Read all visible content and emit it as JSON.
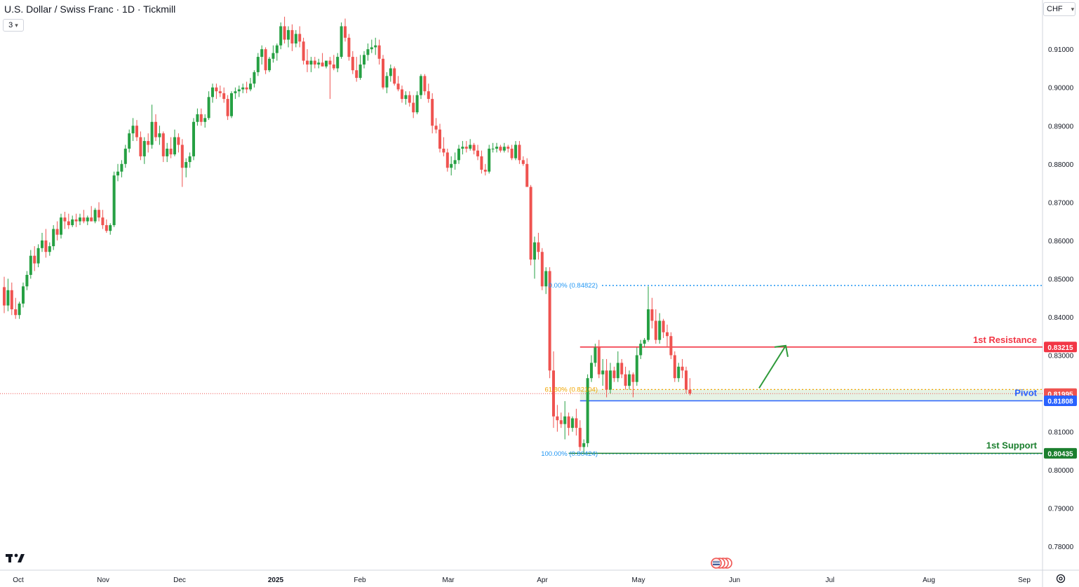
{
  "header": {
    "title": "U.S. Dollar / Swiss Franc · 1D · Tickmill",
    "indicator_count": "3",
    "currency": "CHF"
  },
  "colors": {
    "up": "#26a043",
    "down": "#ef5350",
    "resistance": "#f23645",
    "pivot": "#2962ff",
    "support": "#1b7f2e",
    "fib_zero": "#2196f3",
    "fib_618": "#f0a500",
    "arrow": "#2e9a3a",
    "pivot_band": "#e6f2e4"
  },
  "icons": [
    "tradingview-logo-icon",
    "settings-icon",
    "economic-events-icon",
    "chevron-down-icon"
  ],
  "chart_data": {
    "type": "candlestick",
    "title": "U.S. Dollar / Swiss Franc · 1D · Tickmill",
    "y_unit": "CHF",
    "ylim": [
      0.7738,
      0.9225
    ],
    "y_ticks": [
      0.91,
      0.9,
      0.89,
      0.88,
      0.87,
      0.86,
      0.85,
      0.84,
      0.83,
      0.82,
      0.81,
      0.8,
      0.79,
      0.78
    ],
    "y_tick_labels": [
      "0.91000",
      "0.90000",
      "0.89000",
      "0.88000",
      "0.87000",
      "0.86000",
      "0.85000",
      "0.84000",
      "0.83000",
      "0.82000",
      "0.81000",
      "0.80000",
      "0.79000",
      "0.78000"
    ],
    "x_labels": [
      "Oct",
      "Nov",
      "Dec",
      "2025",
      "Feb",
      "Mar",
      "Apr",
      "May",
      "Jun",
      "Jul",
      "Aug",
      "Sep"
    ],
    "grid": false,
    "ohlc": [
      [
        0.8478,
        0.8505,
        0.841,
        0.843
      ],
      [
        0.843,
        0.85,
        0.8415,
        0.847
      ],
      [
        0.847,
        0.849,
        0.8405,
        0.842
      ],
      [
        0.842,
        0.845,
        0.8395,
        0.8405
      ],
      [
        0.8405,
        0.844,
        0.8395,
        0.8435
      ],
      [
        0.8435,
        0.849,
        0.8425,
        0.848
      ],
      [
        0.848,
        0.852,
        0.847,
        0.851
      ],
      [
        0.851,
        0.8575,
        0.85,
        0.856
      ],
      [
        0.856,
        0.8585,
        0.852,
        0.854
      ],
      [
        0.854,
        0.859,
        0.853,
        0.858
      ],
      [
        0.858,
        0.862,
        0.857,
        0.86
      ],
      [
        0.86,
        0.863,
        0.8555,
        0.857
      ],
      [
        0.857,
        0.8595,
        0.856,
        0.8585
      ],
      [
        0.8585,
        0.864,
        0.8575,
        0.863
      ],
      [
        0.863,
        0.865,
        0.86,
        0.8615
      ],
      [
        0.8615,
        0.867,
        0.8605,
        0.866
      ],
      [
        0.866,
        0.8675,
        0.863,
        0.865
      ],
      [
        0.865,
        0.867,
        0.863,
        0.864
      ],
      [
        0.864,
        0.8665,
        0.8635,
        0.8655
      ],
      [
        0.8655,
        0.867,
        0.8635,
        0.865
      ],
      [
        0.865,
        0.867,
        0.864,
        0.866
      ],
      [
        0.866,
        0.868,
        0.8645,
        0.865
      ],
      [
        0.865,
        0.8665,
        0.864,
        0.866
      ],
      [
        0.866,
        0.869,
        0.865,
        0.865
      ],
      [
        0.865,
        0.8685,
        0.8645,
        0.868
      ],
      [
        0.868,
        0.87,
        0.865,
        0.866
      ],
      [
        0.866,
        0.868,
        0.863,
        0.864
      ],
      [
        0.864,
        0.8655,
        0.862,
        0.8625
      ],
      [
        0.8625,
        0.8645,
        0.8615,
        0.864
      ],
      [
        0.864,
        0.878,
        0.8635,
        0.877
      ],
      [
        0.877,
        0.88,
        0.8755,
        0.878
      ],
      [
        0.878,
        0.881,
        0.8765,
        0.88
      ],
      [
        0.88,
        0.885,
        0.879,
        0.884
      ],
      [
        0.884,
        0.889,
        0.883,
        0.888
      ],
      [
        0.888,
        0.892,
        0.886,
        0.89
      ],
      [
        0.89,
        0.8915,
        0.886,
        0.887
      ],
      [
        0.887,
        0.8885,
        0.881,
        0.882
      ],
      [
        0.882,
        0.887,
        0.88,
        0.886
      ],
      [
        0.886,
        0.888,
        0.883,
        0.885
      ],
      [
        0.885,
        0.8955,
        0.884,
        0.891
      ],
      [
        0.891,
        0.893,
        0.886,
        0.887
      ],
      [
        0.887,
        0.89,
        0.885,
        0.888
      ],
      [
        0.888,
        0.8885,
        0.8805,
        0.882
      ],
      [
        0.882,
        0.8855,
        0.8805,
        0.884
      ],
      [
        0.884,
        0.887,
        0.8815,
        0.8825
      ],
      [
        0.8825,
        0.889,
        0.882,
        0.887
      ],
      [
        0.887,
        0.888,
        0.883,
        0.885
      ],
      [
        0.885,
        0.8865,
        0.874,
        0.879
      ],
      [
        0.879,
        0.8815,
        0.8765,
        0.8805
      ],
      [
        0.8805,
        0.883,
        0.879,
        0.882
      ],
      [
        0.882,
        0.892,
        0.881,
        0.891
      ],
      [
        0.891,
        0.8945,
        0.89,
        0.893
      ],
      [
        0.893,
        0.8945,
        0.89,
        0.891
      ],
      [
        0.891,
        0.893,
        0.8895,
        0.892
      ],
      [
        0.892,
        0.899,
        0.8915,
        0.8975
      ],
      [
        0.8975,
        0.901,
        0.896,
        0.9
      ],
      [
        0.9,
        0.901,
        0.897,
        0.899
      ],
      [
        0.899,
        0.9005,
        0.8975,
        0.8985
      ],
      [
        0.8985,
        0.9,
        0.896,
        0.897
      ],
      [
        0.897,
        0.898,
        0.8915,
        0.8925
      ],
      [
        0.8925,
        0.899,
        0.892,
        0.8985
      ],
      [
        0.8985,
        0.9,
        0.897,
        0.899
      ],
      [
        0.899,
        0.9005,
        0.8975,
        0.8995
      ],
      [
        0.8995,
        0.901,
        0.8985,
        0.9
      ],
      [
        0.9,
        0.9015,
        0.8985,
        0.8995
      ],
      [
        0.8995,
        0.9025,
        0.899,
        0.901
      ],
      [
        0.901,
        0.9045,
        0.9,
        0.904
      ],
      [
        0.904,
        0.909,
        0.903,
        0.908
      ],
      [
        0.908,
        0.911,
        0.906,
        0.91
      ],
      [
        0.91,
        0.9105,
        0.9035,
        0.9045
      ],
      [
        0.9045,
        0.908,
        0.904,
        0.9075
      ],
      [
        0.9075,
        0.911,
        0.9065,
        0.909
      ],
      [
        0.909,
        0.9115,
        0.907,
        0.911
      ],
      [
        0.911,
        0.917,
        0.91,
        0.916
      ],
      [
        0.916,
        0.9185,
        0.9115,
        0.9125
      ],
      [
        0.9125,
        0.916,
        0.9105,
        0.915
      ],
      [
        0.915,
        0.9165,
        0.9095,
        0.9115
      ],
      [
        0.9115,
        0.915,
        0.9105,
        0.914
      ],
      [
        0.914,
        0.916,
        0.9105,
        0.912
      ],
      [
        0.912,
        0.913,
        0.906,
        0.907
      ],
      [
        0.907,
        0.91,
        0.904,
        0.906
      ],
      [
        0.906,
        0.908,
        0.904,
        0.907
      ],
      [
        0.907,
        0.908,
        0.905,
        0.906
      ],
      [
        0.906,
        0.9075,
        0.905,
        0.9065
      ],
      [
        0.9065,
        0.909,
        0.9055,
        0.9055
      ],
      [
        0.9055,
        0.907,
        0.905,
        0.907
      ],
      [
        0.907,
        0.908,
        0.897,
        0.906
      ],
      [
        0.906,
        0.9085,
        0.9045,
        0.905
      ],
      [
        0.905,
        0.909,
        0.904,
        0.908
      ],
      [
        0.908,
        0.917,
        0.9075,
        0.916
      ],
      [
        0.916,
        0.918,
        0.912,
        0.913
      ],
      [
        0.913,
        0.914,
        0.907,
        0.908
      ],
      [
        0.908,
        0.9095,
        0.9035,
        0.9045
      ],
      [
        0.9045,
        0.908,
        0.9015,
        0.9025
      ],
      [
        0.9025,
        0.9085,
        0.902,
        0.906
      ],
      [
        0.906,
        0.9095,
        0.905,
        0.9085
      ],
      [
        0.9085,
        0.9115,
        0.907,
        0.91
      ],
      [
        0.91,
        0.9125,
        0.909,
        0.9105
      ],
      [
        0.9105,
        0.913,
        0.9085,
        0.911
      ],
      [
        0.911,
        0.9125,
        0.906,
        0.9075
      ],
      [
        0.9075,
        0.9085,
        0.8995,
        0.9
      ],
      [
        0.9,
        0.904,
        0.8985,
        0.903
      ],
      [
        0.903,
        0.906,
        0.9015,
        0.905
      ],
      [
        0.905,
        0.9055,
        0.9005,
        0.901
      ],
      [
        0.901,
        0.903,
        0.899,
        0.8995
      ],
      [
        0.8995,
        0.9005,
        0.896,
        0.897
      ],
      [
        0.897,
        0.899,
        0.8955,
        0.898
      ],
      [
        0.898,
        0.899,
        0.895,
        0.896
      ],
      [
        0.896,
        0.898,
        0.892,
        0.8935
      ],
      [
        0.8935,
        0.899,
        0.893,
        0.898
      ],
      [
        0.898,
        0.9035,
        0.897,
        0.903
      ],
      [
        0.903,
        0.9035,
        0.898,
        0.899
      ],
      [
        0.899,
        0.901,
        0.896,
        0.897
      ],
      [
        0.897,
        0.8985,
        0.888,
        0.89
      ],
      [
        0.89,
        0.892,
        0.888,
        0.889
      ],
      [
        0.889,
        0.8905,
        0.883,
        0.884
      ],
      [
        0.884,
        0.887,
        0.882,
        0.883
      ],
      [
        0.883,
        0.884,
        0.878,
        0.879
      ],
      [
        0.879,
        0.882,
        0.877,
        0.88
      ],
      [
        0.88,
        0.883,
        0.8785,
        0.881
      ],
      [
        0.881,
        0.885,
        0.88,
        0.884
      ],
      [
        0.884,
        0.886,
        0.8825,
        0.8845
      ],
      [
        0.8845,
        0.886,
        0.883,
        0.884
      ],
      [
        0.884,
        0.8865,
        0.8835,
        0.885
      ],
      [
        0.885,
        0.8855,
        0.8825,
        0.8835
      ],
      [
        0.8835,
        0.885,
        0.881,
        0.882
      ],
      [
        0.882,
        0.8835,
        0.8775,
        0.8785
      ],
      [
        0.8785,
        0.88,
        0.877,
        0.878
      ],
      [
        0.878,
        0.885,
        0.8775,
        0.884
      ],
      [
        0.884,
        0.8855,
        0.883,
        0.884
      ],
      [
        0.884,
        0.8855,
        0.883,
        0.8845
      ],
      [
        0.8845,
        0.885,
        0.883,
        0.8835
      ],
      [
        0.8835,
        0.8855,
        0.883,
        0.8845
      ],
      [
        0.8845,
        0.885,
        0.883,
        0.884
      ],
      [
        0.884,
        0.885,
        0.881,
        0.8815
      ],
      [
        0.8815,
        0.886,
        0.881,
        0.885
      ],
      [
        0.885,
        0.886,
        0.88,
        0.881
      ],
      [
        0.881,
        0.882,
        0.8795,
        0.88
      ],
      [
        0.88,
        0.8815,
        0.874,
        0.874
      ],
      [
        0.874,
        0.8745,
        0.8535,
        0.855
      ],
      [
        0.855,
        0.861,
        0.85,
        0.8595
      ],
      [
        0.8595,
        0.862,
        0.855,
        0.857
      ],
      [
        0.857,
        0.858,
        0.847,
        0.848
      ],
      [
        0.848,
        0.853,
        0.846,
        0.852
      ],
      [
        0.852,
        0.853,
        0.824,
        0.826
      ],
      [
        0.826,
        0.831,
        0.811,
        0.814
      ],
      [
        0.814,
        0.817,
        0.81,
        0.813
      ],
      [
        0.813,
        0.815,
        0.811,
        0.812
      ],
      [
        0.812,
        0.818,
        0.808,
        0.814
      ],
      [
        0.814,
        0.815,
        0.809,
        0.811
      ],
      [
        0.811,
        0.814,
        0.81,
        0.8135
      ],
      [
        0.8135,
        0.816,
        0.809,
        0.811
      ],
      [
        0.811,
        0.813,
        0.805,
        0.806
      ],
      [
        0.806,
        0.808,
        0.8042,
        0.807
      ],
      [
        0.807,
        0.825,
        0.806,
        0.824
      ],
      [
        0.824,
        0.83,
        0.823,
        0.828
      ],
      [
        0.828,
        0.833,
        0.827,
        0.832
      ],
      [
        0.832,
        0.834,
        0.824,
        0.825
      ],
      [
        0.825,
        0.829,
        0.822,
        0.826
      ],
      [
        0.826,
        0.829,
        0.819,
        0.821
      ],
      [
        0.821,
        0.828,
        0.82,
        0.826
      ],
      [
        0.826,
        0.827,
        0.823,
        0.824
      ],
      [
        0.824,
        0.831,
        0.823,
        0.828
      ],
      [
        0.828,
        0.829,
        0.824,
        0.825
      ],
      [
        0.825,
        0.827,
        0.821,
        0.822
      ],
      [
        0.822,
        0.826,
        0.821,
        0.825
      ],
      [
        0.825,
        0.8255,
        0.819,
        0.823
      ],
      [
        0.823,
        0.832,
        0.822,
        0.83
      ],
      [
        0.83,
        0.834,
        0.829,
        0.833
      ],
      [
        0.833,
        0.8345,
        0.832,
        0.834
      ],
      [
        0.834,
        0.848,
        0.8335,
        0.842
      ],
      [
        0.842,
        0.845,
        0.837,
        0.839
      ],
      [
        0.839,
        0.842,
        0.833,
        0.834
      ],
      [
        0.834,
        0.841,
        0.833,
        0.839
      ],
      [
        0.839,
        0.8395,
        0.8345,
        0.836
      ],
      [
        0.836,
        0.838,
        0.832,
        0.835
      ],
      [
        0.835,
        0.836,
        0.829,
        0.83
      ],
      [
        0.83,
        0.831,
        0.823,
        0.824
      ],
      [
        0.824,
        0.828,
        0.823,
        0.827
      ],
      [
        0.827,
        0.829,
        0.824,
        0.826
      ],
      [
        0.826,
        0.827,
        0.82,
        0.821
      ],
      [
        0.821,
        0.824,
        0.8195,
        0.82
      ]
    ],
    "annotations": {
      "fib_0": {
        "label": "0.00% (0.84822)",
        "value": 0.84822
      },
      "fib_618": {
        "label": "61.80% (0.82104)",
        "value": 0.82104
      },
      "fib_100": {
        "label": "100.00% (0.80424)",
        "value": 0.80424
      },
      "resistance": {
        "label": "1st Resistance",
        "value": 0.83215,
        "tag": "0.83215"
      },
      "pivot": {
        "label": "Pivot",
        "value": 0.81808,
        "tag": "0.81808"
      },
      "support": {
        "label": "1st Support",
        "value": 0.80435,
        "tag": "0.80435"
      },
      "last_price": {
        "value": 0.81995,
        "tag": "0.81995"
      }
    }
  }
}
